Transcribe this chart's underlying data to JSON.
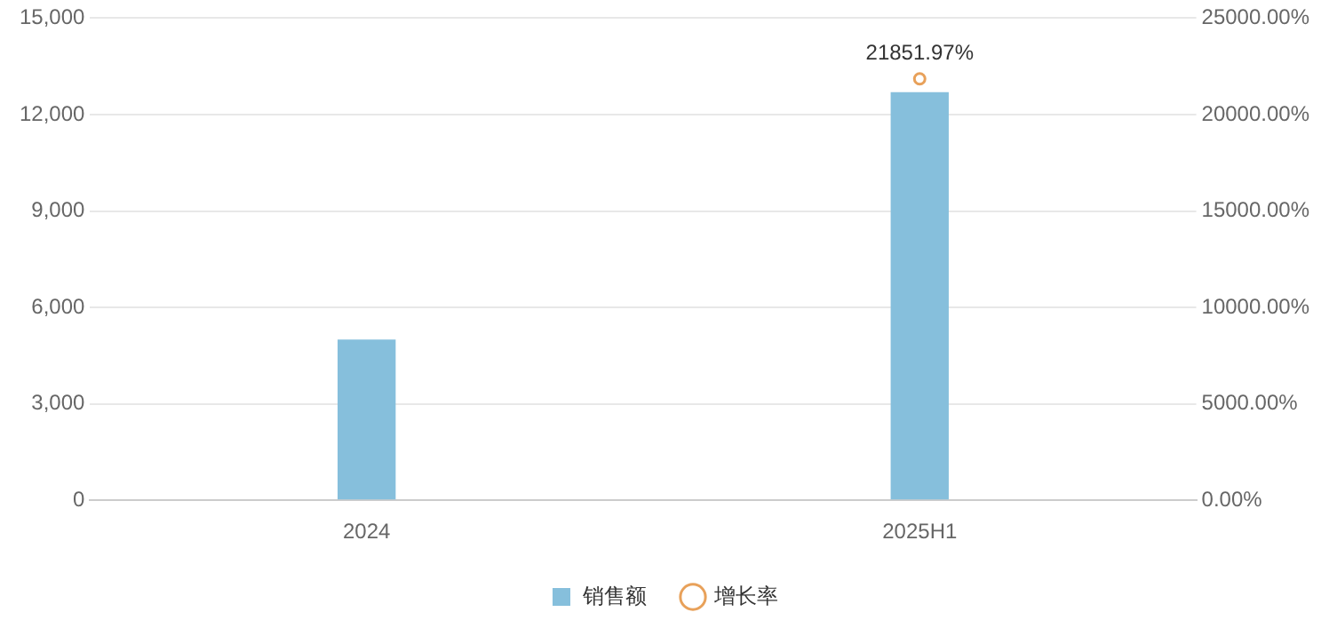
{
  "chart_data": {
    "type": "bar",
    "categories": [
      "2024",
      "2025H1"
    ],
    "series": [
      {
        "name": "销售额",
        "color": "#86bfdc",
        "values": [
          5000,
          12700
        ]
      },
      {
        "name": "增长率",
        "type": "line",
        "axis": "y2",
        "color": "#e8a15a",
        "values": [
          null,
          21851.97
        ],
        "value_labels": [
          null,
          "21851.97%"
        ],
        "marker": "circle"
      }
    ],
    "ylim": [
      0,
      15000
    ],
    "yticks": [
      {
        "value": 0,
        "label": "0"
      },
      {
        "value": 3000,
        "label": "3,000"
      },
      {
        "value": 6000,
        "label": "6,000"
      },
      {
        "value": 9000,
        "label": "9,000"
      },
      {
        "value": 12000,
        "label": "12,000"
      },
      {
        "value": 15000,
        "label": "15,000"
      }
    ],
    "y2lim": [
      0,
      25000
    ],
    "y2ticks": [
      {
        "value": 0,
        "label": "0.00%"
      },
      {
        "value": 5000,
        "label": "5000.00%"
      },
      {
        "value": 10000,
        "label": "10000.00%"
      },
      {
        "value": 15000,
        "label": "15000.00%"
      },
      {
        "value": 20000,
        "label": "20000.00%"
      },
      {
        "value": 25000,
        "label": "25000.00%"
      }
    ],
    "grid": "y",
    "legend": "bottom"
  }
}
